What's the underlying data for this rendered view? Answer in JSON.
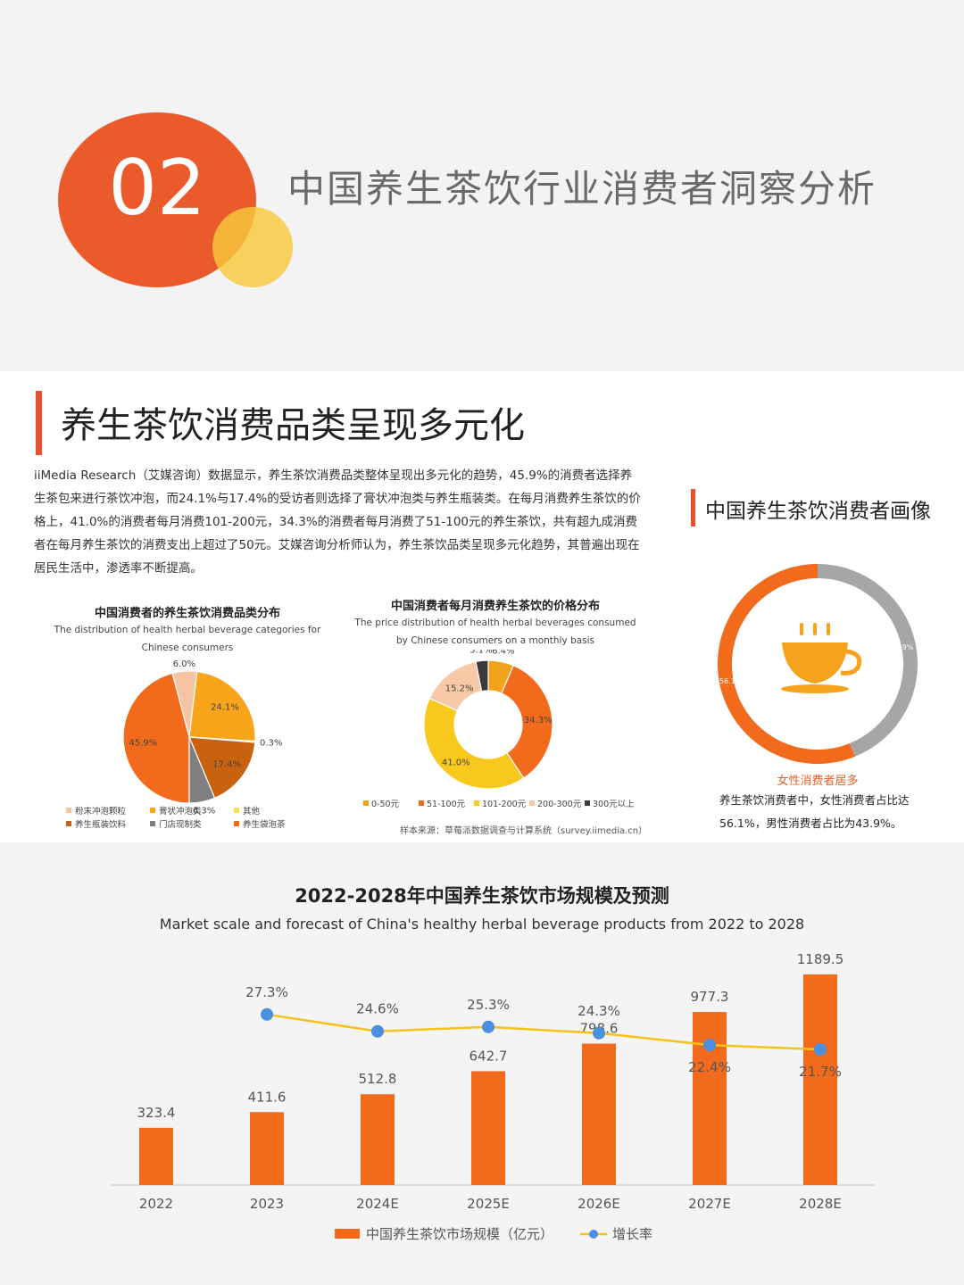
{
  "header": {
    "section_number": "02",
    "section_title": "中国养生茶饮行业消费者洞察分析"
  },
  "panel": {
    "title": "养生茶饮消费品类呈现多元化",
    "description": "iiMedia Research（艾媒咨询）数据显示，养生茶饮消费品类整体呈现出多元化的趋势，45.9%的消费者选择养生茶包来进行茶饮冲泡，而24.1%与17.4%的受访者则选择了膏状冲泡类与养生瓶装类。在每月消费养生茶饮的价格上，41.0%的消费者每月消费101-200元，34.3%的消费者每月消费了51-100元的养生茶饮，共有超九成消费者在每月养生茶饮的消费支出上超过了50元。艾媒咨询分析师认为，养生茶饮品类呈现多元化趋势，其普遍出现在居民生活中，渗透率不断提高。",
    "portrait_title": "中国养生茶饮消费者画像",
    "portrait_highlight": "女性消费者居多",
    "portrait_note": "养生茶饮消费者中，女性消费者占比达56.1%，男性消费者占比为43.9%。",
    "source": "样本来源：草莓派数据调查与计算系统（survey.iimedia.cn）"
  },
  "colors": {
    "orange": "#f26b1d",
    "deep_orange": "#e8502a",
    "yellow": "#f8c33c",
    "gray": "#a6a6a6",
    "blue": "#4a8fe0",
    "line_yellow": "#f5c21a"
  },
  "chart_data": [
    {
      "type": "pie",
      "title": "中国消费者的养生茶饮消费品类分布",
      "subtitle": "The distribution of health herbal beverage categories for Chinese consumers",
      "labels": [
        "养生袋泡茶",
        "粉末冲泡颗粒",
        "膏状冲泡类",
        "其他",
        "养生瓶装饮料",
        "门店现制类"
      ],
      "values": [
        45.9,
        6.0,
        24.1,
        0.3,
        17.4,
        6.3
      ],
      "data_labels": [
        "45.9%",
        "6.0%",
        "24.1%",
        "0.3%",
        "17.4%",
        "6.3%"
      ],
      "colors": [
        "#f26b1d",
        "#f6c3a3",
        "#f8a51c",
        "#f6e04a",
        "#c9620f",
        "#7f7f7f"
      ],
      "legend": [
        "粉末冲泡颗粒",
        "膏状冲泡类",
        "其他",
        "养生瓶装饮料",
        "门店现制类",
        "养生袋泡茶"
      ]
    },
    {
      "type": "pie",
      "title": "中国消费者每月消费养生茶饮的价格分布",
      "subtitle": "The price distribution of health herbal beverages consumed by Chinese consumers on a monthly basis",
      "labels": [
        "0-50元",
        "51-100元",
        "101-200元",
        "200-300元",
        "300元以上"
      ],
      "values": [
        6.4,
        34.3,
        41.0,
        15.2,
        3.1
      ],
      "data_labels": [
        "6.4%",
        "34.3%",
        "41.0%",
        "15.2%",
        "3.1%"
      ],
      "colors": [
        "#f3a21c",
        "#f26b1d",
        "#f8c81c",
        "#f7c9a6",
        "#3a3a3a"
      ],
      "legend": [
        "0-50元",
        "51-100元",
        "101-200元",
        "200-300元",
        "300元以上"
      ]
    },
    {
      "type": "pie",
      "labels": [
        "女性",
        "男性"
      ],
      "values": [
        56.1,
        43.9
      ],
      "data_labels": [
        "56.1%",
        "43.9%"
      ],
      "colors": [
        "#f26b1d",
        "#a6a6a6"
      ]
    },
    {
      "type": "bar",
      "title": "2022-2028年中国养生茶饮市场规模及预测",
      "subtitle": "Market scale and forecast of China's healthy herbal beverage products from 2022 to 2028",
      "categories": [
        "2022",
        "2023",
        "2024E",
        "2025E",
        "2026E",
        "2027E",
        "2028E"
      ],
      "series": [
        {
          "name": "中国养生茶饮市场规模（亿元）",
          "values": [
            323.4,
            411.6,
            512.8,
            642.7,
            798.6,
            977.3,
            1189.5
          ],
          "labels": [
            "323.4",
            "411.6",
            "512.8",
            "642.7",
            "798.6",
            "977.3",
            "1189.5"
          ]
        },
        {
          "name": "增长率",
          "type": "line",
          "values": [
            null,
            27.3,
            24.6,
            25.3,
            24.3,
            22.4,
            21.7
          ],
          "labels": [
            "",
            "27.3%",
            "24.6%",
            "25.3%",
            "24.3%",
            "22.4%",
            "21.7%"
          ]
        }
      ],
      "ylim": [
        0,
        1300
      ]
    }
  ]
}
